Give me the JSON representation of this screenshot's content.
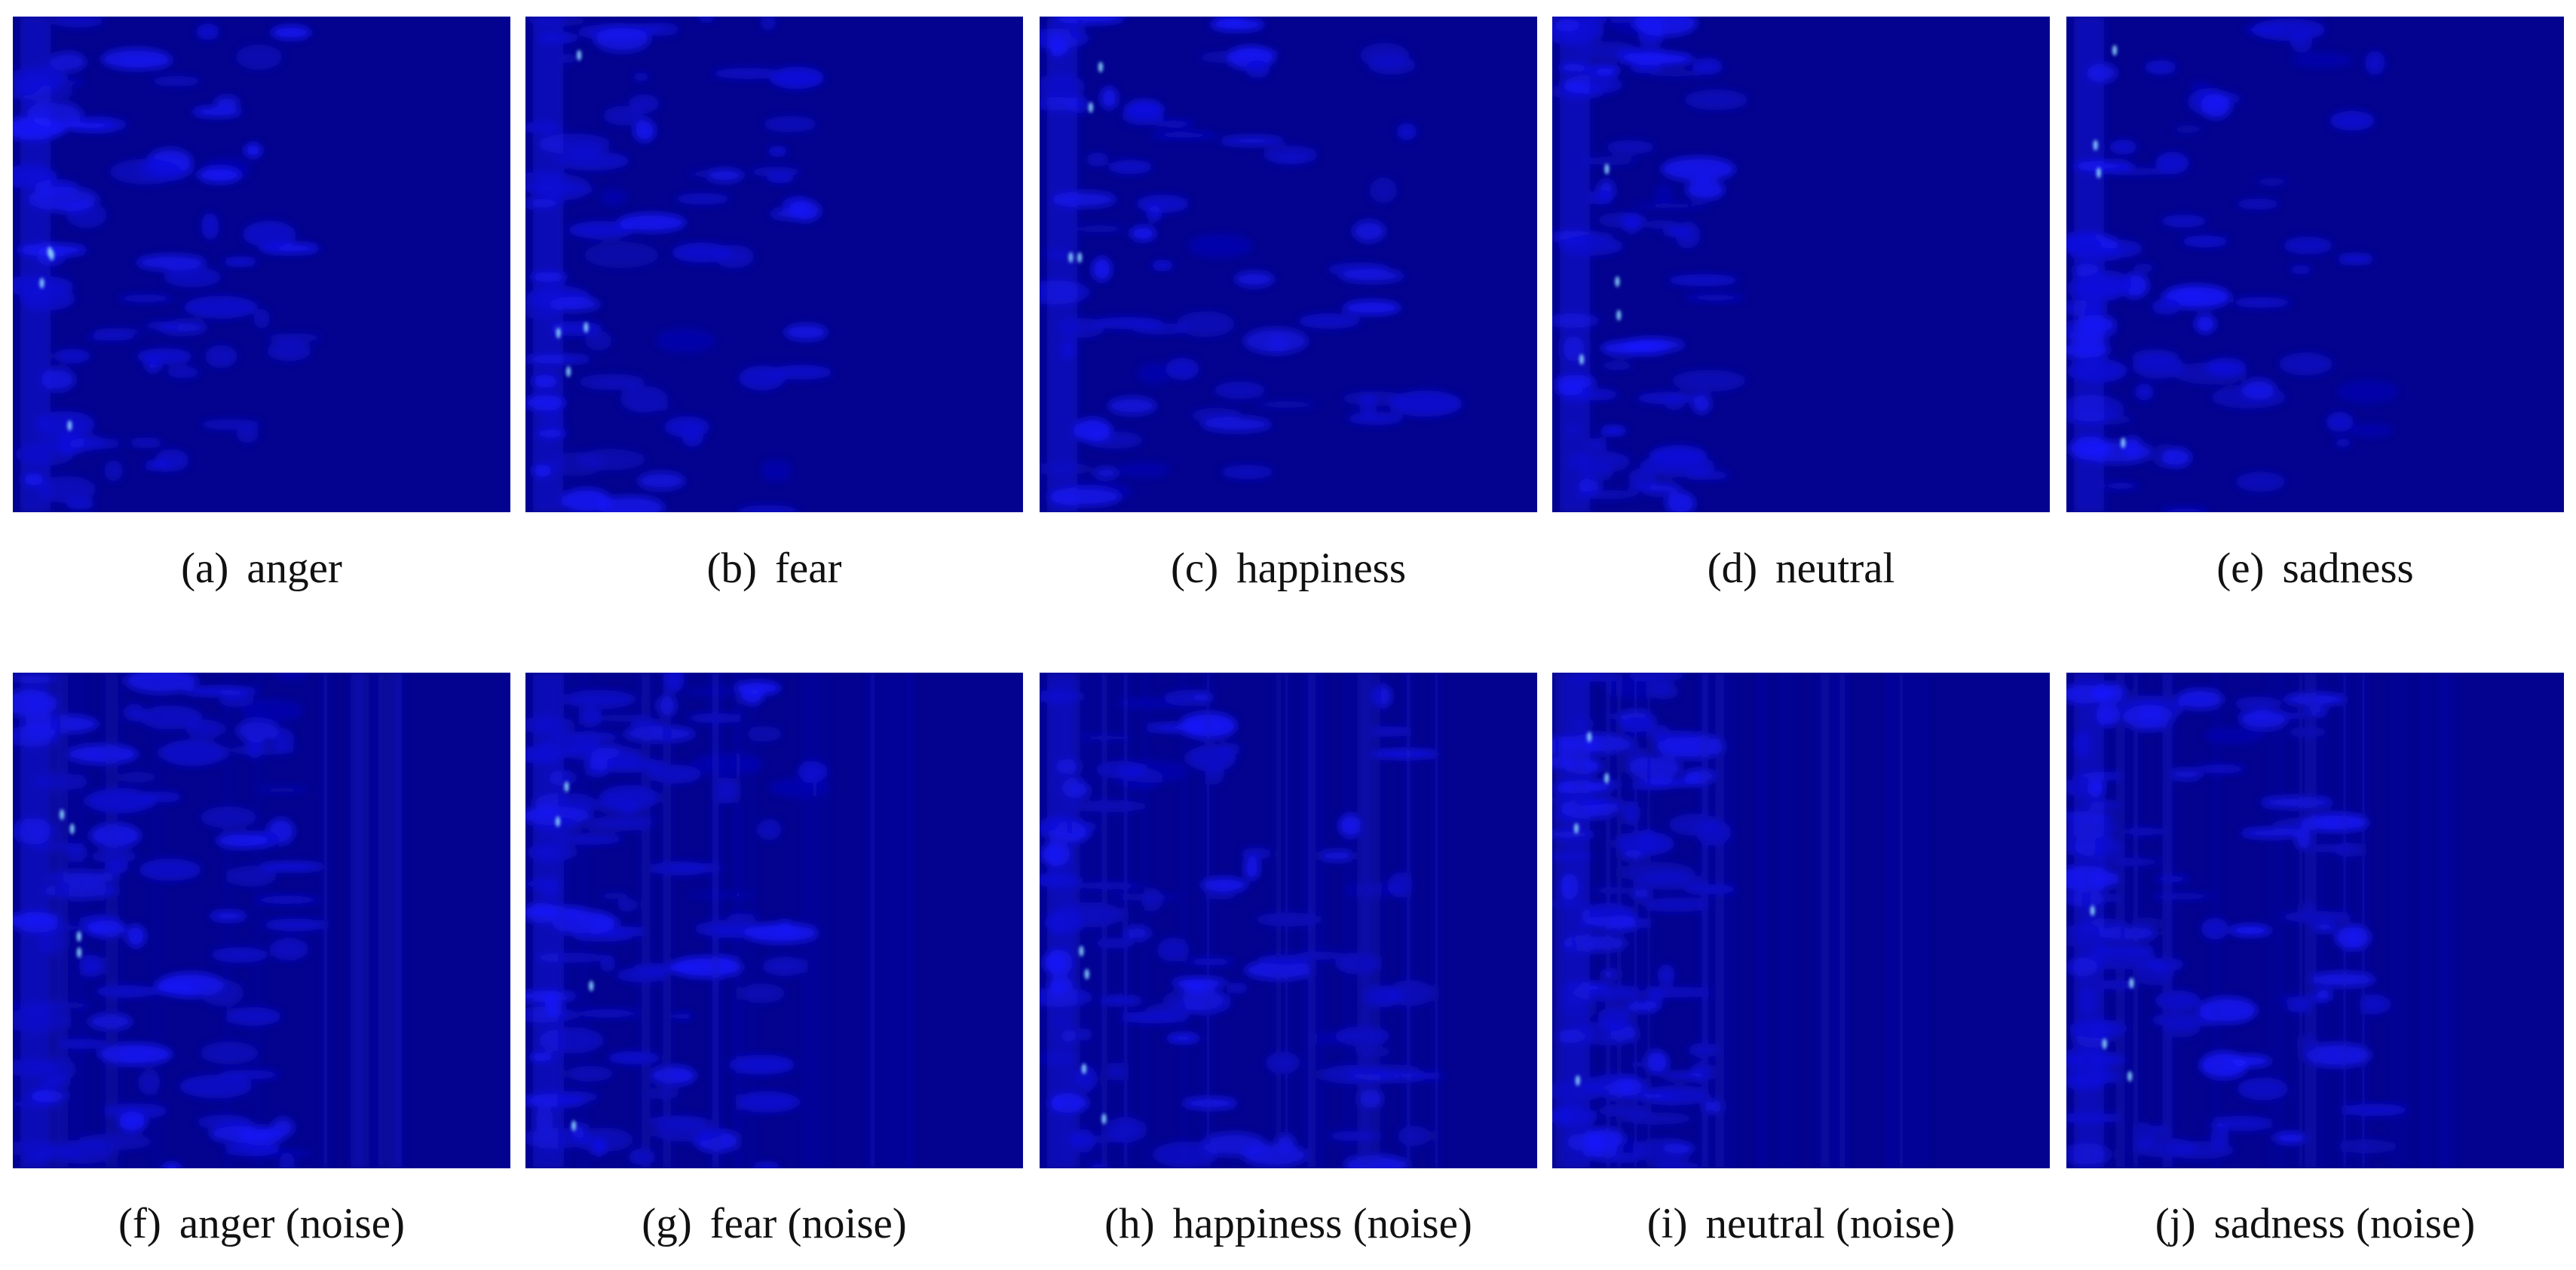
{
  "panels": [
    {
      "label": "(a)",
      "caption": "anger"
    },
    {
      "label": "(b)",
      "caption": "fear"
    },
    {
      "label": "(c)",
      "caption": "happiness"
    },
    {
      "label": "(d)",
      "caption": "neutral"
    },
    {
      "label": "(e)",
      "caption": "sadness"
    },
    {
      "label": "(f)",
      "caption": "anger (noise)"
    },
    {
      "label": "(g)",
      "caption": "fear (noise)"
    },
    {
      "label": "(h)",
      "caption": "happiness (noise)"
    },
    {
      "label": "(i)",
      "caption": "neutral (noise)"
    },
    {
      "label": "(j)",
      "caption": "sadness (noise)"
    }
  ]
}
